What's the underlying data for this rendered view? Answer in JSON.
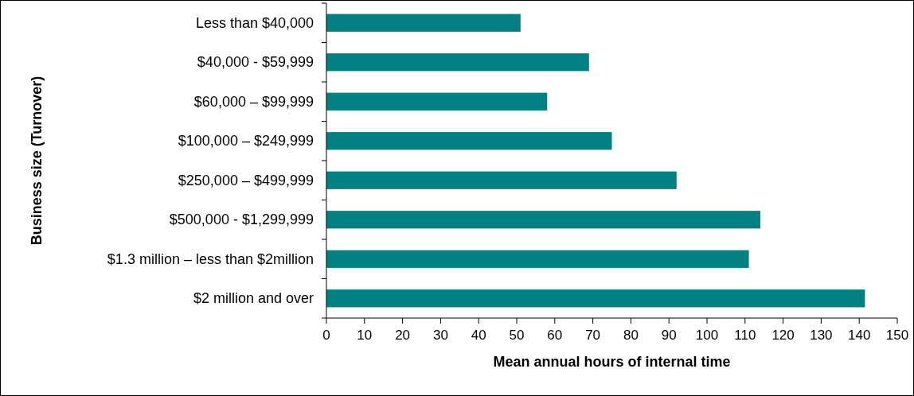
{
  "chart_data": {
    "type": "bar",
    "orientation": "horizontal",
    "xlabel": "Mean annual hours of internal time",
    "ylabel": "Business size (Turnover)",
    "categories": [
      "Less than $40,000",
      "$40,000 - $59,999",
      "$60,000 – $99,999",
      "$100,000 – $249,999",
      "$250,000 – $499,999",
      "$500,000 - $1,299,999",
      "$1.3 million – less than $2million",
      "$2 million and over"
    ],
    "values": [
      51,
      69,
      58,
      75,
      92,
      114,
      111,
      141.5
    ],
    "color": "#008080",
    "xlim": [
      0,
      150
    ],
    "xticks": [
      0,
      10,
      20,
      30,
      40,
      50,
      60,
      70,
      80,
      90,
      100,
      110,
      120,
      130,
      140,
      150
    ],
    "grid": false
  }
}
